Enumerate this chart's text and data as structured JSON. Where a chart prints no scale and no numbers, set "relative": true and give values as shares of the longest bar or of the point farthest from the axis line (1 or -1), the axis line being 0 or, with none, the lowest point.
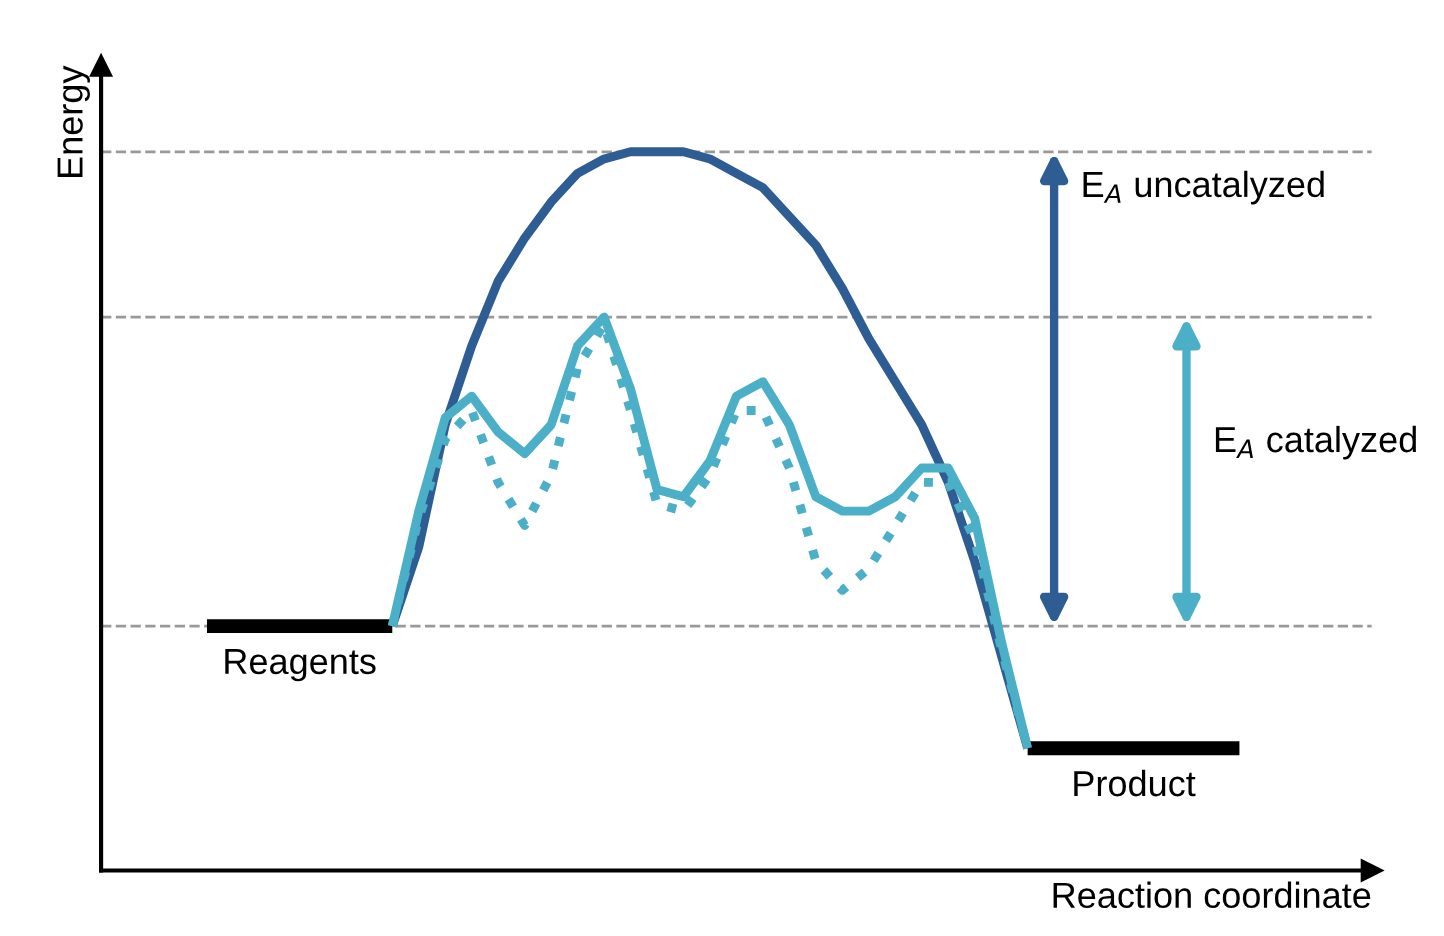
{
  "chart_data": {
    "type": "line",
    "relative": true,
    "xlabel": "Reaction coordinate",
    "ylabel": "Energy",
    "tick_labels": false,
    "grid": false,
    "legend": false,
    "categories": [
      null,
      null,
      null,
      null,
      null,
      null,
      null,
      null,
      null,
      null,
      null,
      null,
      null,
      null,
      null,
      null,
      null,
      null,
      null,
      null,
      null,
      null,
      null,
      null,
      null,
      null,
      null,
      null,
      null,
      null,
      null,
      null,
      null,
      null,
      null,
      null,
      null,
      null,
      null,
      null,
      null
    ],
    "series": [
      {
        "name": "Reagents",
        "color": "#000000",
        "values": [
          0.34,
          0.34,
          0.34,
          0.34,
          0.34,
          0.34,
          0.34,
          0.34,
          null,
          null,
          null,
          null,
          null,
          null,
          null,
          null,
          null,
          null,
          null,
          null,
          null,
          null,
          null,
          null,
          null,
          null,
          null,
          null,
          null,
          null,
          null,
          null,
          null,
          null,
          null,
          null,
          null,
          null,
          null,
          null,
          null
        ]
      },
      {
        "name": "Product",
        "color": "#000000",
        "values": [
          null,
          null,
          null,
          null,
          null,
          null,
          null,
          null,
          null,
          null,
          null,
          null,
          null,
          null,
          null,
          null,
          null,
          null,
          null,
          null,
          null,
          null,
          null,
          null,
          null,
          null,
          null,
          null,
          null,
          null,
          null,
          0.17,
          0.17,
          0.17,
          0.17,
          0.17,
          0.17,
          0.17,
          0.17,
          0.17,
          null
        ]
      },
      {
        "color": "#2d5d93",
        "line_style": "solid",
        "values": [
          null,
          null,
          null,
          null,
          null,
          null,
          null,
          0.34,
          0.45,
          0.62,
          0.73,
          0.82,
          0.88,
          0.93,
          0.97,
          0.99,
          1.0,
          1.0,
          1.0,
          0.99,
          0.97,
          0.95,
          0.91,
          0.87,
          0.81,
          0.74,
          0.68,
          0.62,
          0.54,
          0.43,
          0.3,
          0.17,
          null,
          null,
          null,
          null,
          null,
          null,
          null,
          null,
          null
        ]
      },
      {
        "color": "#4bafc8",
        "line_style": "solid",
        "values": [
          null,
          null,
          null,
          null,
          null,
          null,
          null,
          0.34,
          0.5,
          0.63,
          0.66,
          0.61,
          0.58,
          0.62,
          0.73,
          0.77,
          0.67,
          0.53,
          0.52,
          0.57,
          0.66,
          0.68,
          0.62,
          0.52,
          0.5,
          0.5,
          0.52,
          0.56,
          0.56,
          0.49,
          0.32,
          0.17,
          null,
          null,
          null,
          null,
          null,
          null,
          null,
          null,
          null
        ]
      },
      {
        "color": "#4bafc8",
        "line_style": "dotted",
        "values": [
          null,
          null,
          null,
          null,
          null,
          null,
          null,
          0.34,
          0.49,
          0.6,
          0.64,
          0.54,
          0.48,
          0.55,
          0.7,
          0.76,
          0.64,
          0.51,
          0.5,
          0.55,
          0.64,
          0.64,
          0.56,
          0.43,
          0.39,
          0.42,
          0.48,
          0.54,
          0.54,
          0.46,
          0.31,
          0.17,
          null,
          null,
          null,
          null,
          null,
          null,
          null,
          null,
          null
        ]
      }
    ],
    "ref_lines": [
      {
        "axis": "y",
        "value": 1.0,
        "color": "#999999",
        "line_style": "dashed"
      },
      {
        "axis": "y",
        "value": 0.77,
        "color": "#999999",
        "line_style": "dashed"
      },
      {
        "axis": "y",
        "value": 0.34,
        "color": "#999999",
        "line_style": "dashed"
      }
    ],
    "annotations": [
      "E$_{A}$ uncatalyzed",
      "E$_{A}$ catalyzed"
    ]
  }
}
